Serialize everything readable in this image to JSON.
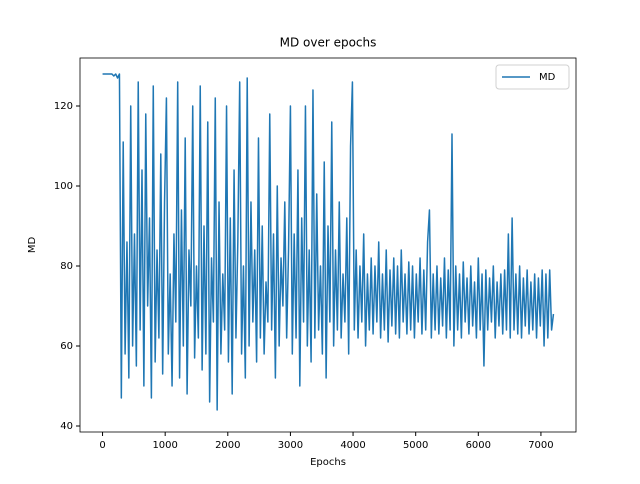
{
  "chart_data": {
    "type": "line",
    "title": "MD over epochs",
    "x_label": "Epochs",
    "y_label": "MD",
    "x": [
      0,
      30,
      60,
      90,
      120,
      150,
      180,
      210,
      240,
      270,
      300,
      330,
      360,
      390,
      420,
      450,
      480,
      510,
      540,
      570,
      600,
      630,
      660,
      690,
      720,
      750,
      780,
      810,
      840,
      870,
      900,
      930,
      960,
      990,
      1020,
      1050,
      1080,
      1110,
      1140,
      1170,
      1200,
      1230,
      1260,
      1290,
      1320,
      1350,
      1380,
      1410,
      1440,
      1470,
      1500,
      1530,
      1560,
      1590,
      1620,
      1650,
      1680,
      1710,
      1740,
      1770,
      1800,
      1830,
      1860,
      1890,
      1920,
      1950,
      1980,
      2010,
      2040,
      2070,
      2100,
      2130,
      2160,
      2190,
      2220,
      2250,
      2280,
      2310,
      2340,
      2370,
      2400,
      2430,
      2460,
      2490,
      2520,
      2550,
      2580,
      2610,
      2640,
      2670,
      2700,
      2730,
      2760,
      2790,
      2820,
      2850,
      2880,
      2910,
      2940,
      2970,
      3000,
      3030,
      3060,
      3090,
      3120,
      3150,
      3180,
      3210,
      3240,
      3270,
      3300,
      3330,
      3360,
      3390,
      3420,
      3450,
      3480,
      3510,
      3540,
      3570,
      3600,
      3630,
      3660,
      3690,
      3720,
      3750,
      3780,
      3810,
      3840,
      3870,
      3900,
      3930,
      3960,
      3990,
      4020,
      4050,
      4080,
      4110,
      4140,
      4170,
      4200,
      4230,
      4260,
      4290,
      4320,
      4350,
      4380,
      4410,
      4440,
      4470,
      4500,
      4530,
      4560,
      4590,
      4620,
      4650,
      4680,
      4710,
      4740,
      4770,
      4800,
      4830,
      4860,
      4890,
      4920,
      4950,
      4980,
      5010,
      5040,
      5070,
      5100,
      5130,
      5160,
      5190,
      5220,
      5250,
      5280,
      5310,
      5340,
      5370,
      5400,
      5430,
      5460,
      5490,
      5520,
      5550,
      5580,
      5610,
      5640,
      5670,
      5700,
      5730,
      5760,
      5790,
      5820,
      5850,
      5880,
      5910,
      5940,
      5970,
      6000,
      6030,
      6060,
      6090,
      6120,
      6150,
      6180,
      6210,
      6240,
      6270,
      6300,
      6330,
      6360,
      6390,
      6420,
      6450,
      6480,
      6510,
      6540,
      6570,
      6600,
      6630,
      6660,
      6690,
      6720,
      6750,
      6780,
      6810,
      6840,
      6870,
      6900,
      6930,
      6960,
      6990,
      7020,
      7050,
      7080,
      7110,
      7140,
      7170,
      7200
    ],
    "series": [
      {
        "name": "MD",
        "color": "#1f77b4",
        "values": [
          128,
          128,
          128,
          128,
          128,
          128,
          127.5,
          128,
          127,
          128,
          47,
          111,
          58,
          86,
          52,
          120,
          60,
          88,
          55,
          126,
          64,
          104,
          50,
          118,
          70,
          92,
          47,
          125,
          56,
          84,
          62,
          108,
          53,
          96,
          122,
          58,
          78,
          50,
          88,
          66,
          126,
          52,
          94,
          60,
          112,
          48,
          84,
          70,
          120,
          57,
          80,
          62,
          125,
          54,
          90,
          58,
          116,
          46,
          82,
          66,
          122,
          44,
          96,
          58,
          78,
          64,
          120,
          56,
          92,
          48,
          104,
          62,
          86,
          126,
          58,
          80,
          52,
          127,
          60,
          96,
          66,
          84,
          56,
          112,
          62,
          90,
          58,
          76,
          66,
          118,
          64,
          88,
          52,
          100,
          60,
          82,
          70,
          96,
          62,
          84,
          120,
          58,
          88,
          62,
          104,
          50,
          92,
          66,
          120,
          60,
          84,
          56,
          124,
          62,
          98,
          64,
          80,
          58,
          106,
          52,
          90,
          66,
          116,
          60,
          84,
          64,
          96,
          62,
          78,
          66,
          92,
          58,
          110,
          126,
          64,
          84,
          62,
          80,
          66,
          88,
          60,
          78,
          64,
          82,
          63,
          80,
          66,
          86,
          62,
          78,
          64,
          84,
          61,
          79,
          65,
          82,
          63,
          80,
          62,
          84,
          66,
          78,
          63,
          81,
          64,
          80,
          62,
          78,
          66,
          82,
          63,
          79,
          64,
          86,
          94,
          62,
          78,
          64,
          80,
          63,
          77,
          65,
          82,
          62,
          79,
          64,
          113,
          60,
          80,
          64,
          78,
          62,
          81,
          66,
          77,
          63,
          80,
          65,
          76,
          62,
          82,
          64,
          78,
          55,
          79,
          64,
          77,
          66,
          80,
          62,
          76,
          65,
          78,
          63,
          79,
          64,
          88,
          62,
          92,
          64,
          78,
          63,
          80,
          62,
          77,
          65,
          79,
          63,
          76,
          64,
          78,
          62,
          77,
          65,
          79,
          60,
          78,
          62,
          79,
          64,
          68
        ]
      }
    ],
    "xlim": [
      -360,
      7560
    ],
    "ylim": [
      38.5,
      132
    ],
    "xticks": [
      0,
      1000,
      2000,
      3000,
      4000,
      5000,
      6000,
      7000
    ],
    "yticks": [
      40,
      60,
      80,
      100,
      120
    ],
    "legend": "upper right"
  }
}
